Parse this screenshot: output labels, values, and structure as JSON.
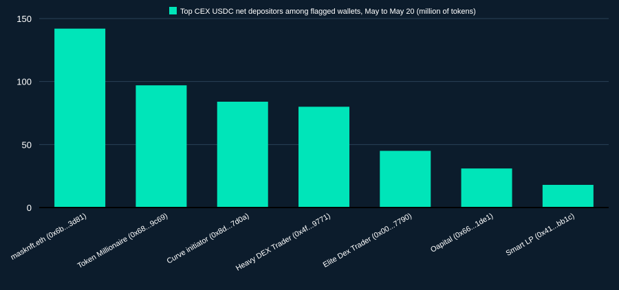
{
  "chart_data": {
    "type": "bar",
    "title": "",
    "xlabel": "",
    "ylabel": "",
    "legend": {
      "label": "Top CEX USDC net depositors among flagged wallets, May to May 20  (million of tokens)",
      "placement": "top-center"
    },
    "categories": [
      "masknft.eth (0x6b...3d81)",
      "Token Millionaire (0x68...9c69)",
      "Curve initiator (0x8d...7d0a)",
      "Heavy DEX Trader (0x4f...9771)",
      "Elite Dex Trader (0x00...7790)",
      "Oapital (0x66...1de1)",
      "Smart LP (0x41...bb1c)"
    ],
    "values": [
      142,
      97,
      84,
      80,
      45,
      31,
      18
    ],
    "ylim": [
      0,
      150
    ],
    "yticks": [
      0,
      50,
      100,
      150
    ],
    "grid": true,
    "colors": {
      "bar": "#00e5b9",
      "background": "#0c1c2c",
      "grid": "#2a4258",
      "axis": "#000000",
      "text": "#ffffff"
    }
  }
}
